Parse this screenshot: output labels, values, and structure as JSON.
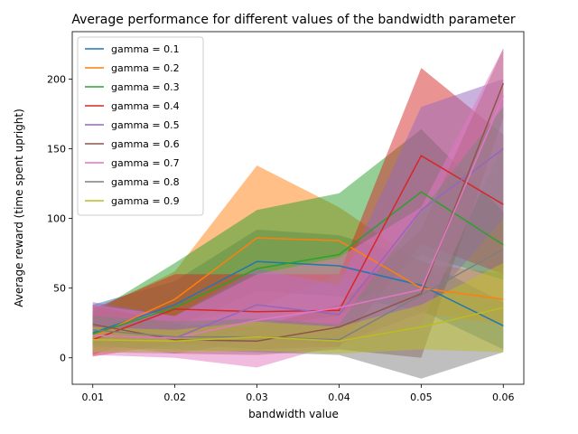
{
  "chart_data": {
    "type": "line",
    "title": "Average performance for different values of the bandwidth parameter",
    "xlabel": "bandwidth value",
    "ylabel": "Average reward (time spent upright)",
    "x": [
      0.01,
      0.02,
      0.03,
      0.04,
      0.05,
      0.06
    ],
    "x_tick_labels": [
      "0.01",
      "0.02",
      "0.03",
      "0.04",
      "0.05",
      "0.06"
    ],
    "xlim": [
      0.0075,
      0.0625
    ],
    "ylim": [
      -19,
      234
    ],
    "y_ticks": [
      0,
      50,
      100,
      150,
      200
    ],
    "y_tick_labels": [
      "0",
      "50",
      "100",
      "150",
      "200"
    ],
    "grid": false,
    "legend_position": "top-left",
    "series": [
      {
        "name": "gamma = 0.1",
        "color": "#1f77b4",
        "values": [
          18,
          38,
          69,
          66,
          52,
          23
        ],
        "upper": [
          38,
          55,
          92,
          88,
          70,
          40
        ],
        "lower": [
          2,
          22,
          48,
          44,
          34,
          6
        ]
      },
      {
        "name": "gamma = 0.2",
        "color": "#ff7f0e",
        "values": [
          15,
          42,
          86,
          84,
          50,
          42
        ],
        "upper": [
          33,
          62,
          138,
          108,
          68,
          60
        ],
        "lower": [
          2,
          24,
          36,
          60,
          32,
          24
        ]
      },
      {
        "name": "gamma = 0.3",
        "color": "#2ca02c",
        "values": [
          17,
          36,
          64,
          74,
          119,
          81
        ],
        "upper": [
          32,
          68,
          106,
          118,
          164,
          105
        ],
        "lower": [
          4,
          8,
          22,
          30,
          74,
          56
        ]
      },
      {
        "name": "gamma = 0.4",
        "color": "#d62728",
        "values": [
          13,
          35,
          33,
          34,
          145,
          110
        ],
        "upper": [
          35,
          60,
          60,
          60,
          208,
          160
        ],
        "lower": [
          1,
          10,
          6,
          8,
          82,
          60
        ]
      },
      {
        "name": "gamma = 0.5",
        "color": "#9467bd",
        "values": [
          16,
          14,
          38,
          31,
          106,
          150
        ],
        "upper": [
          40,
          30,
          64,
          52,
          180,
          200
        ],
        "lower": [
          4,
          3,
          12,
          10,
          32,
          100
        ]
      },
      {
        "name": "gamma = 0.6",
        "color": "#8c564b",
        "values": [
          24,
          13,
          12,
          22,
          46,
          197
        ],
        "upper": [
          38,
          24,
          22,
          38,
          92,
          222
        ],
        "lower": [
          10,
          3,
          2,
          6,
          0,
          172
        ]
      },
      {
        "name": "gamma = 0.7",
        "color": "#e377c2",
        "values": [
          16,
          14,
          27,
          36,
          49,
          188
        ],
        "upper": [
          38,
          30,
          60,
          72,
          108,
          222
        ],
        "lower": [
          2,
          0,
          -7,
          10,
          24,
          154
        ]
      },
      {
        "name": "gamma = 0.8",
        "color": "#7f7f7f",
        "values": [
          20,
          15,
          15,
          13,
          45,
          78
        ],
        "upper": [
          30,
          26,
          28,
          24,
          105,
          180
        ],
        "lower": [
          8,
          6,
          4,
          2,
          -15,
          4
        ]
      },
      {
        "name": "gamma = 0.9",
        "color": "#bcbd22",
        "values": [
          13,
          12,
          15,
          12,
          22,
          36
        ],
        "upper": [
          22,
          20,
          26,
          22,
          38,
          68
        ],
        "lower": [
          4,
          4,
          5,
          3,
          6,
          4
        ]
      }
    ]
  }
}
